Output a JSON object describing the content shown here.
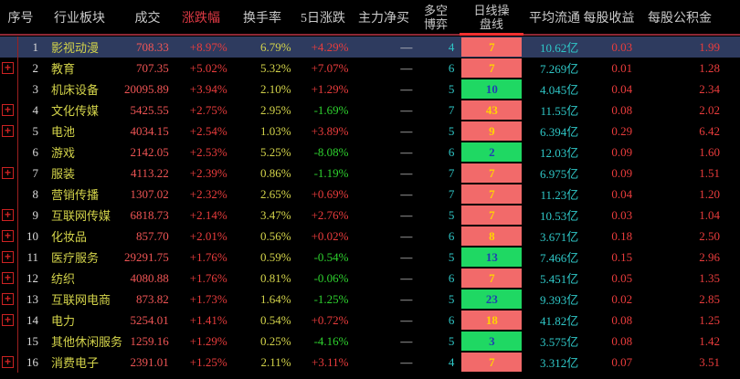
{
  "header": {
    "seq": "序号",
    "sector": "行业板块",
    "volume": "成交",
    "change_pct": "涨跌幅",
    "turnover": "换手率",
    "change_5d": "5日涨跌",
    "main_net_buy": "主力净买",
    "bull_bear_line1": "多空",
    "bull_bear_line2": "博弈",
    "daily_line_line1": "日线操",
    "daily_line_line2": "盘线",
    "avg_float": "平均流通",
    "eps": "每股收益",
    "reserve": "每股公积金"
  },
  "rows": [
    {
      "seq": "1",
      "expandable": false,
      "selected": true,
      "sector": "影视动漫",
      "volume": "708.33",
      "change_pct": "+8.97%",
      "turnover": "6.79%",
      "change_5d": "+4.29%",
      "main_net_buy": "—",
      "bull_bear": "4",
      "daily_line": "7",
      "daily_line_color": "red",
      "avg_float": "10.62亿",
      "eps": "0.03",
      "reserve": "1.99"
    },
    {
      "seq": "2",
      "expandable": true,
      "selected": false,
      "sector": "教育",
      "volume": "707.35",
      "change_pct": "+5.02%",
      "turnover": "5.32%",
      "change_5d": "+7.07%",
      "main_net_buy": "—",
      "bull_bear": "6",
      "daily_line": "7",
      "daily_line_color": "red",
      "avg_float": "7.269亿",
      "eps": "0.01",
      "reserve": "1.28"
    },
    {
      "seq": "3",
      "expandable": false,
      "selected": false,
      "sector": "机床设备",
      "volume": "20095.89",
      "change_pct": "+3.94%",
      "turnover": "2.10%",
      "change_5d": "+1.29%",
      "main_net_buy": "—",
      "bull_bear": "5",
      "daily_line": "10",
      "daily_line_color": "green",
      "avg_float": "4.045亿",
      "eps": "0.04",
      "reserve": "2.34"
    },
    {
      "seq": "4",
      "expandable": true,
      "selected": false,
      "sector": "文化传媒",
      "volume": "5425.55",
      "change_pct": "+2.75%",
      "turnover": "2.95%",
      "change_5d": "-1.69%",
      "main_net_buy": "—",
      "bull_bear": "7",
      "daily_line": "43",
      "daily_line_color": "red",
      "avg_float": "11.55亿",
      "eps": "0.08",
      "reserve": "2.02"
    },
    {
      "seq": "5",
      "expandable": true,
      "selected": false,
      "sector": "电池",
      "volume": "4034.15",
      "change_pct": "+2.54%",
      "turnover": "1.03%",
      "change_5d": "+3.89%",
      "main_net_buy": "—",
      "bull_bear": "5",
      "daily_line": "9",
      "daily_line_color": "red",
      "avg_float": "6.394亿",
      "eps": "0.29",
      "reserve": "6.42"
    },
    {
      "seq": "6",
      "expandable": false,
      "selected": false,
      "sector": "游戏",
      "volume": "2142.05",
      "change_pct": "+2.53%",
      "turnover": "5.25%",
      "change_5d": "-8.08%",
      "main_net_buy": "—",
      "bull_bear": "6",
      "daily_line": "2",
      "daily_line_color": "green",
      "avg_float": "12.03亿",
      "eps": "0.09",
      "reserve": "1.60"
    },
    {
      "seq": "7",
      "expandable": true,
      "selected": false,
      "sector": "服装",
      "volume": "4113.22",
      "change_pct": "+2.39%",
      "turnover": "0.86%",
      "change_5d": "-1.19%",
      "main_net_buy": "—",
      "bull_bear": "7",
      "daily_line": "7",
      "daily_line_color": "red",
      "avg_float": "6.975亿",
      "eps": "0.09",
      "reserve": "1.51"
    },
    {
      "seq": "8",
      "expandable": false,
      "selected": false,
      "sector": "营销传播",
      "volume": "1307.02",
      "change_pct": "+2.32%",
      "turnover": "2.65%",
      "change_5d": "+0.69%",
      "main_net_buy": "—",
      "bull_bear": "7",
      "daily_line": "7",
      "daily_line_color": "red",
      "avg_float": "11.23亿",
      "eps": "0.04",
      "reserve": "1.20"
    },
    {
      "seq": "9",
      "expandable": true,
      "selected": false,
      "sector": "互联网传媒",
      "volume": "6818.73",
      "change_pct": "+2.14%",
      "turnover": "3.47%",
      "change_5d": "+2.76%",
      "main_net_buy": "—",
      "bull_bear": "5",
      "daily_line": "7",
      "daily_line_color": "red",
      "avg_float": "10.53亿",
      "eps": "0.03",
      "reserve": "1.04"
    },
    {
      "seq": "10",
      "expandable": true,
      "selected": false,
      "sector": "化妆品",
      "volume": "857.70",
      "change_pct": "+2.01%",
      "turnover": "0.56%",
      "change_5d": "+0.02%",
      "main_net_buy": "—",
      "bull_bear": "6",
      "daily_line": "8",
      "daily_line_color": "red",
      "avg_float": "3.671亿",
      "eps": "0.18",
      "reserve": "2.50"
    },
    {
      "seq": "11",
      "expandable": true,
      "selected": false,
      "sector": "医疗服务",
      "volume": "29291.75",
      "change_pct": "+1.76%",
      "turnover": "0.59%",
      "change_5d": "-0.54%",
      "main_net_buy": "—",
      "bull_bear": "5",
      "daily_line": "13",
      "daily_line_color": "green",
      "avg_float": "7.466亿",
      "eps": "0.15",
      "reserve": "2.96"
    },
    {
      "seq": "12",
      "expandable": true,
      "selected": false,
      "sector": "纺织",
      "volume": "4080.88",
      "change_pct": "+1.76%",
      "turnover": "0.81%",
      "change_5d": "-0.06%",
      "main_net_buy": "—",
      "bull_bear": "6",
      "daily_line": "7",
      "daily_line_color": "red",
      "avg_float": "5.451亿",
      "eps": "0.05",
      "reserve": "1.35"
    },
    {
      "seq": "13",
      "expandable": true,
      "selected": false,
      "sector": "互联网电商",
      "volume": "873.82",
      "change_pct": "+1.73%",
      "turnover": "1.64%",
      "change_5d": "-1.25%",
      "main_net_buy": "—",
      "bull_bear": "5",
      "daily_line": "23",
      "daily_line_color": "green",
      "avg_float": "9.393亿",
      "eps": "0.02",
      "reserve": "2.85"
    },
    {
      "seq": "14",
      "expandable": true,
      "selected": false,
      "sector": "电力",
      "volume": "5254.01",
      "change_pct": "+1.41%",
      "turnover": "0.54%",
      "change_5d": "+0.72%",
      "main_net_buy": "—",
      "bull_bear": "6",
      "daily_line": "18",
      "daily_line_color": "red",
      "avg_float": "41.82亿",
      "eps": "0.08",
      "reserve": "1.25"
    },
    {
      "seq": "15",
      "expandable": false,
      "selected": false,
      "sector": "其他休闲服务",
      "volume": "1259.16",
      "change_pct": "+1.29%",
      "turnover": "0.25%",
      "change_5d": "-4.16%",
      "main_net_buy": "—",
      "bull_bear": "5",
      "daily_line": "3",
      "daily_line_color": "green",
      "avg_float": "3.575亿",
      "eps": "0.08",
      "reserve": "1.42"
    },
    {
      "seq": "16",
      "expandable": true,
      "selected": false,
      "sector": "消费电子",
      "volume": "2391.01",
      "change_pct": "+1.25%",
      "turnover": "2.11%",
      "change_5d": "+3.11%",
      "main_net_buy": "—",
      "bull_bear": "4",
      "daily_line": "7",
      "daily_line_color": "red",
      "avg_float": "3.312亿",
      "eps": "0.07",
      "reserve": "3.51"
    }
  ],
  "colors": {
    "up": "#e93c3c",
    "down": "#2ed12e",
    "volume_text": "#f05555",
    "yellow": "#d3d34a",
    "cyan": "#2fc7c7",
    "sorted_header": "#e03a45",
    "header_separator": "#8e2836",
    "daily_line_underline": "#f23030",
    "cell_red": "#f26a6a",
    "cell_red_text": "#ffd400",
    "cell_green": "#1fd863",
    "cell_green_text": "#2041b0",
    "selected_row_bg": "#2e3b5f",
    "plus_icon": "#cc2222",
    "vertical_line": "#9c1f1f"
  }
}
